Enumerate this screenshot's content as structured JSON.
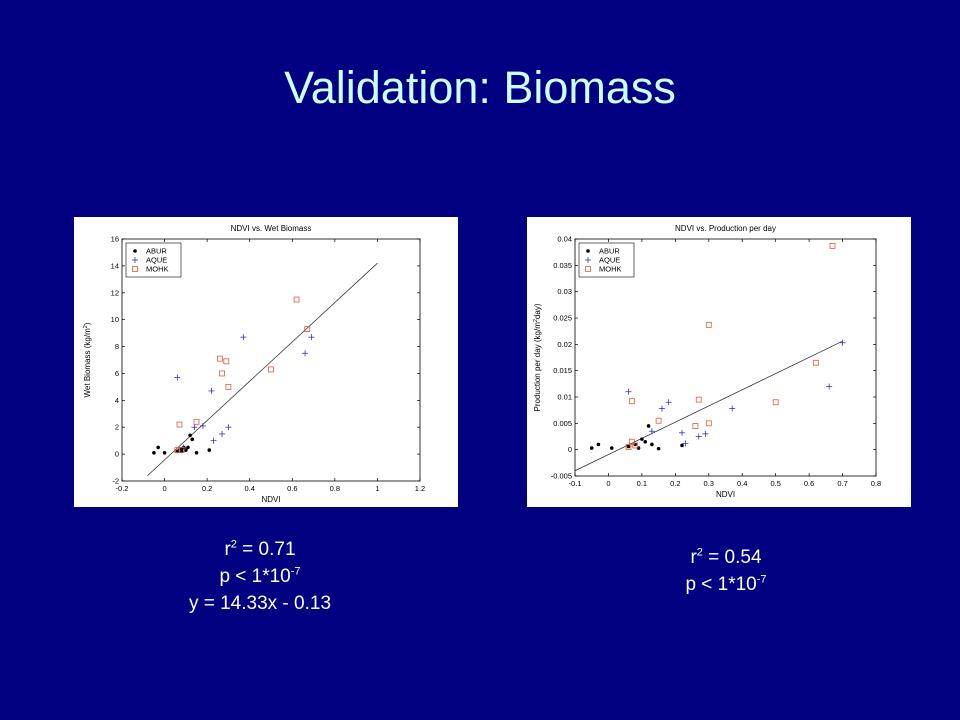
{
  "slide": {
    "title": "Validation: Biomass"
  },
  "stats_left": {
    "r2_label": "r",
    "r2_sup": "2",
    "r2_value": " = 0.71",
    "p_label": "p < 1*10",
    "p_sup": "-7",
    "equation": "y = 14.33x - 0.13"
  },
  "stats_right": {
    "r2_label": "r",
    "r2_sup": "2",
    "r2_value": " = 0.54",
    "p_label": "p < 1*10",
    "p_sup": "-7"
  },
  "colors": {
    "background": "#000080",
    "title": "#ccffff",
    "ABUR": "#000000",
    "AQUE": "#3333cc",
    "MOHK": "#e05a3a"
  },
  "chart_data": [
    {
      "type": "scatter",
      "title": "NDVI vs. Wet Biomass",
      "xlabel": "NDVI",
      "ylabel": "Wet Biomass (kg/m",
      "ylabel_sup": "2",
      "ylabel_end": ")",
      "xlim": [
        -0.2,
        1.2
      ],
      "ylim": [
        -2,
        16
      ],
      "xticks": [
        -0.2,
        0,
        0.2,
        0.4,
        0.6,
        0.8,
        1,
        1.2
      ],
      "xtick_labels": [
        "-0.2",
        "0",
        "0.2",
        "0.4",
        "0.6",
        "0.8",
        "1",
        "1.2"
      ],
      "yticks": [
        -2,
        0,
        2,
        4,
        6,
        8,
        10,
        12,
        14,
        16
      ],
      "ytick_labels": [
        "-2",
        "0",
        "2",
        "4",
        "6",
        "8",
        "10",
        "12",
        "14",
        "16"
      ],
      "legend_position": "top-left",
      "series": [
        {
          "name": "ABUR",
          "marker": "dot",
          "x": [
            -0.05,
            -0.03,
            0.0,
            0.06,
            0.07,
            0.08,
            0.09,
            0.1,
            0.11,
            0.12,
            0.13,
            0.15,
            0.21,
            0.08
          ],
          "y": [
            0.1,
            0.5,
            0.1,
            0.2,
            0.3,
            0.4,
            0.5,
            0.3,
            0.5,
            1.4,
            1.1,
            0.1,
            0.3,
            0.2
          ]
        },
        {
          "name": "AQUE",
          "marker": "plus",
          "x": [
            0.06,
            0.09,
            0.14,
            0.18,
            0.22,
            0.23,
            0.27,
            0.3,
            0.37,
            0.66,
            0.69
          ],
          "y": [
            5.7,
            0.5,
            2.0,
            2.1,
            4.7,
            1.0,
            1.5,
            2.0,
            8.7,
            7.5,
            8.7
          ]
        },
        {
          "name": "MOHK",
          "marker": "square",
          "x": [
            0.06,
            0.07,
            0.08,
            0.15,
            0.26,
            0.27,
            0.29,
            0.3,
            0.5,
            0.62,
            0.67
          ],
          "y": [
            0.3,
            2.2,
            0.3,
            2.4,
            7.1,
            6.0,
            6.9,
            5.0,
            6.3,
            11.5,
            9.3
          ]
        }
      ],
      "fit_line": {
        "x": [
          -0.08,
          1.0
        ],
        "y": [
          -1.6,
          14.2
        ]
      }
    },
    {
      "type": "scatter",
      "title": "NDVI vs. Production per day",
      "xlabel": "NDVI",
      "ylabel": "Production per day (kg/m",
      "ylabel_sup": "2",
      "ylabel_end": "day)",
      "xlim": [
        -0.1,
        0.8
      ],
      "ylim": [
        -0.005,
        0.04
      ],
      "xticks": [
        -0.1,
        0,
        0.1,
        0.2,
        0.3,
        0.4,
        0.5,
        0.6,
        0.7,
        0.8
      ],
      "xtick_labels": [
        "-0.1",
        "0",
        "0.1",
        "0.2",
        "0.3",
        "0.4",
        "0.5",
        "0.6",
        "0.7",
        "0.8"
      ],
      "yticks": [
        -0.005,
        0,
        0.005,
        0.01,
        0.015,
        0.02,
        0.025,
        0.03,
        0.035,
        0.04
      ],
      "ytick_labels": [
        "-0.005",
        "0",
        "0.005",
        "0.01",
        "0.015",
        "0.02",
        "0.025",
        "0.03",
        "0.035",
        "0.04"
      ],
      "legend_position": "top-left",
      "series": [
        {
          "name": "ABUR",
          "marker": "dot",
          "x": [
            -0.05,
            -0.03,
            0.01,
            0.06,
            0.08,
            0.09,
            0.1,
            0.11,
            0.12,
            0.13,
            0.15,
            0.22
          ],
          "y": [
            0.0003,
            0.001,
            0.0003,
            0.0006,
            0.001,
            0.0003,
            0.002,
            0.0015,
            0.0045,
            0.001,
            0.0002,
            0.0008
          ]
        },
        {
          "name": "AQUE",
          "marker": "plus",
          "x": [
            0.06,
            0.13,
            0.16,
            0.18,
            0.22,
            0.23,
            0.27,
            0.29,
            0.37,
            0.66,
            0.7
          ],
          "y": [
            0.011,
            0.0035,
            0.0078,
            0.009,
            0.0032,
            0.0012,
            0.0025,
            0.003,
            0.0078,
            0.012,
            0.0203
          ]
        },
        {
          "name": "MOHK",
          "marker": "square",
          "x": [
            0.06,
            0.07,
            0.07,
            0.08,
            0.15,
            0.26,
            0.27,
            0.3,
            0.3,
            0.5,
            0.62,
            0.67
          ],
          "y": [
            0.0005,
            0.0015,
            0.0092,
            0.0008,
            0.0055,
            0.0045,
            0.0095,
            0.0237,
            0.005,
            0.009,
            0.0165,
            0.0387
          ]
        }
      ],
      "fit_line": {
        "x": [
          -0.1,
          0.7
        ],
        "y": [
          -0.004,
          0.0206
        ]
      }
    }
  ]
}
